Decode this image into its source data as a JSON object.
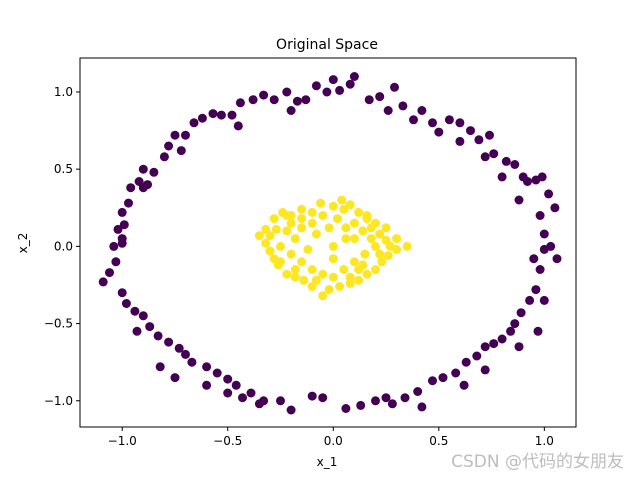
{
  "chart_data": {
    "type": "scatter",
    "title": "Original Space",
    "xlabel": "x_1",
    "ylabel": "x_2",
    "xlim": [
      -1.2,
      1.15
    ],
    "ylim": [
      -1.17,
      1.22
    ],
    "xticks": [
      -1.0,
      -0.5,
      0.0,
      0.5,
      1.0
    ],
    "yticks": [
      -1.0,
      -0.5,
      0.0,
      0.5,
      1.0
    ],
    "xtick_labels": [
      "−1.0",
      "−0.5",
      "0.0",
      "0.5",
      "1.0"
    ],
    "ytick_labels": [
      "−1.0",
      "−0.5",
      "0.0",
      "0.5",
      "1.0"
    ],
    "grid": false,
    "colors": {
      "outer": "#440154",
      "inner": "#fde725"
    },
    "series": [
      {
        "points": [
          [
            -1.09,
            -0.23
          ],
          [
            -1.06,
            -0.17
          ],
          [
            -1.03,
            -0.1
          ],
          [
            -1.04,
            0.0
          ],
          [
            -1.0,
            0.02
          ],
          [
            -1.02,
            0.11
          ],
          [
            -0.99,
            0.14
          ],
          [
            -1.0,
            0.22
          ],
          [
            -0.97,
            0.28
          ],
          [
            -0.96,
            0.38
          ],
          [
            -0.92,
            0.42
          ],
          [
            -0.9,
            0.38
          ],
          [
            -0.88,
            0.4
          ],
          [
            -0.85,
            0.48
          ],
          [
            -0.8,
            0.58
          ],
          [
            -0.78,
            0.65
          ],
          [
            -0.75,
            0.72
          ],
          [
            -0.7,
            0.72
          ],
          [
            -0.66,
            0.8
          ],
          [
            -0.62,
            0.83
          ],
          [
            -0.57,
            0.86
          ],
          [
            -0.53,
            0.85
          ],
          [
            -0.48,
            0.85
          ],
          [
            -0.44,
            0.93
          ],
          [
            -0.38,
            0.95
          ],
          [
            -0.33,
            0.98
          ],
          [
            -0.28,
            0.95
          ],
          [
            -0.22,
            1.0
          ],
          [
            -0.17,
            0.94
          ],
          [
            -0.13,
            0.95
          ],
          [
            -0.08,
            1.04
          ],
          [
            -0.03,
            1.0
          ],
          [
            0.03,
            1.01
          ],
          [
            0.08,
            1.05
          ],
          [
            0.1,
            1.1
          ],
          [
            0.17,
            0.95
          ],
          [
            0.22,
            0.97
          ],
          [
            0.29,
            1.03
          ],
          [
            0.33,
            0.91
          ],
          [
            0.42,
            0.88
          ],
          [
            0.47,
            0.8
          ],
          [
            0.55,
            0.82
          ],
          [
            0.6,
            0.8
          ],
          [
            0.65,
            0.75
          ],
          [
            0.69,
            0.69
          ],
          [
            0.74,
            0.72
          ],
          [
            0.76,
            0.6
          ],
          [
            0.82,
            0.55
          ],
          [
            0.86,
            0.53
          ],
          [
            0.9,
            0.45
          ],
          [
            0.92,
            0.42
          ],
          [
            0.96,
            0.43
          ],
          [
            0.99,
            0.45
          ],
          [
            1.02,
            0.34
          ],
          [
            1.05,
            0.25
          ],
          [
            1.0,
            0.08
          ],
          [
            1.03,
            0.0
          ],
          [
            1.0,
            -0.02
          ],
          [
            0.95,
            -0.08
          ],
          [
            1.06,
            -0.08
          ],
          [
            0.98,
            -0.15
          ],
          [
            0.96,
            -0.28
          ],
          [
            0.93,
            -0.35
          ],
          [
            0.89,
            -0.43
          ],
          [
            0.86,
            -0.5
          ],
          [
            0.84,
            -0.55
          ],
          [
            0.8,
            -0.6
          ],
          [
            0.76,
            -0.63
          ],
          [
            0.72,
            -0.65
          ],
          [
            0.68,
            -0.71
          ],
          [
            0.63,
            -0.75
          ],
          [
            0.58,
            -0.82
          ],
          [
            0.52,
            -0.85
          ],
          [
            0.47,
            -0.87
          ],
          [
            0.4,
            -0.94
          ],
          [
            0.34,
            -0.98
          ],
          [
            0.28,
            -1.02
          ],
          [
            0.2,
            -1.0
          ],
          [
            0.13,
            -1.03
          ],
          [
            0.06,
            -1.05
          ],
          [
            -0.05,
            -0.98
          ],
          [
            -0.1,
            -0.97
          ],
          [
            -0.2,
            -1.06
          ],
          [
            -0.25,
            -1.0
          ],
          [
            -0.33,
            -1.0
          ],
          [
            -0.39,
            -0.95
          ],
          [
            -0.43,
            -0.98
          ],
          [
            -0.46,
            -0.9
          ],
          [
            -0.5,
            -0.86
          ],
          [
            -0.55,
            -0.82
          ],
          [
            -0.6,
            -0.78
          ],
          [
            -0.67,
            -0.75
          ],
          [
            -0.7,
            -0.7
          ],
          [
            -0.73,
            -0.66
          ],
          [
            -0.78,
            -0.62
          ],
          [
            -0.83,
            -0.58
          ],
          [
            -0.87,
            -0.52
          ],
          [
            -0.9,
            -0.45
          ],
          [
            -0.94,
            -0.42
          ],
          [
            -0.98,
            -0.37
          ],
          [
            -1.0,
            -0.3
          ],
          [
            -0.93,
            -0.55
          ],
          [
            -0.82,
            -0.78
          ],
          [
            -0.75,
            -0.85
          ],
          [
            -0.6,
            -0.9
          ],
          [
            -0.5,
            -0.95
          ],
          [
            -0.35,
            -1.02
          ],
          [
            0.25,
            -0.98
          ],
          [
            0.42,
            -1.04
          ],
          [
            0.62,
            -0.9
          ],
          [
            0.72,
            -0.8
          ],
          [
            0.88,
            -0.65
          ],
          [
            0.97,
            -0.55
          ],
          [
            1.0,
            -0.35
          ],
          [
            0.98,
            0.2
          ],
          [
            0.88,
            0.3
          ],
          [
            0.8,
            0.45
          ],
          [
            0.72,
            0.58
          ],
          [
            0.6,
            0.68
          ],
          [
            0.5,
            0.74
          ],
          [
            0.38,
            0.82
          ],
          [
            0.26,
            0.88
          ],
          [
            0.0,
            1.08
          ],
          [
            -0.2,
            0.88
          ],
          [
            -0.45,
            0.78
          ],
          [
            -0.72,
            0.62
          ],
          [
            -0.9,
            0.5
          ],
          [
            -1.0,
            0.05
          ]
        ]
      },
      {
        "points": [
          [
            -0.28,
            0.18
          ],
          [
            -0.24,
            0.22
          ],
          [
            -0.2,
            0.2
          ],
          [
            -0.15,
            0.24
          ],
          [
            -0.1,
            0.22
          ],
          [
            -0.06,
            0.28
          ],
          [
            0.0,
            0.26
          ],
          [
            0.04,
            0.3
          ],
          [
            0.08,
            0.27
          ],
          [
            0.12,
            0.22
          ],
          [
            0.16,
            0.18
          ],
          [
            0.2,
            0.15
          ],
          [
            0.22,
            0.08
          ],
          [
            0.25,
            0.04
          ],
          [
            0.27,
            0.0
          ],
          [
            0.3,
            -0.02
          ],
          [
            0.26,
            -0.06
          ],
          [
            0.23,
            -0.1
          ],
          [
            0.2,
            -0.15
          ],
          [
            0.16,
            -0.18
          ],
          [
            0.12,
            -0.22
          ],
          [
            0.08,
            -0.24
          ],
          [
            0.03,
            -0.26
          ],
          [
            -0.02,
            -0.28
          ],
          [
            -0.05,
            -0.32
          ],
          [
            -0.1,
            -0.26
          ],
          [
            -0.14,
            -0.22
          ],
          [
            -0.18,
            -0.2
          ],
          [
            -0.22,
            -0.18
          ],
          [
            -0.26,
            -0.12
          ],
          [
            -0.28,
            -0.08
          ],
          [
            -0.3,
            -0.03
          ],
          [
            -0.32,
            0.02
          ],
          [
            -0.3,
            0.07
          ],
          [
            -0.27,
            0.11
          ],
          [
            -0.32,
            0.11
          ],
          [
            -0.22,
            0.1
          ],
          [
            -0.18,
            0.05
          ],
          [
            -0.15,
            0.12
          ],
          [
            -0.1,
            0.15
          ],
          [
            -0.05,
            0.2
          ],
          [
            0.02,
            0.18
          ],
          [
            0.06,
            0.12
          ],
          [
            0.1,
            0.15
          ],
          [
            0.14,
            0.1
          ],
          [
            0.18,
            0.05
          ],
          [
            0.2,
            0.0
          ],
          [
            0.15,
            -0.05
          ],
          [
            0.1,
            -0.1
          ],
          [
            0.05,
            -0.15
          ],
          [
            0.0,
            -0.2
          ],
          [
            -0.05,
            -0.18
          ],
          [
            -0.1,
            -0.15
          ],
          [
            -0.15,
            -0.1
          ],
          [
            -0.2,
            -0.05
          ],
          [
            -0.25,
            0.0
          ],
          [
            -0.2,
            0.15
          ],
          [
            -0.08,
            0.08
          ],
          [
            0.0,
            0.0
          ],
          [
            0.06,
            0.05
          ],
          [
            -0.12,
            -0.02
          ],
          [
            0.12,
            -0.15
          ],
          [
            0.18,
            0.12
          ],
          [
            -0.18,
            -0.15
          ],
          [
            0.25,
            0.12
          ],
          [
            -0.25,
            -0.1
          ],
          [
            0.05,
            0.24
          ],
          [
            -0.15,
            0.18
          ],
          [
            0.22,
            -0.05
          ],
          [
            0.3,
            0.05
          ],
          [
            0.35,
            0.0
          ],
          [
            -0.35,
            0.07
          ],
          [
            0.1,
            0.05
          ],
          [
            -0.02,
            0.12
          ],
          [
            0.08,
            -0.2
          ],
          [
            -0.08,
            -0.22
          ],
          [
            0.16,
            0.2
          ],
          [
            -0.22,
            0.2
          ],
          [
            0.14,
            -0.12
          ],
          [
            0.0,
            -0.08
          ]
        ]
      }
    ]
  },
  "watermark": "CSDN @代码的女朋友"
}
